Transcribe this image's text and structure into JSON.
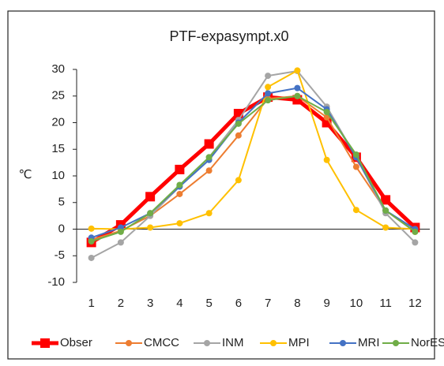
{
  "chart_data": {
    "type": "line",
    "title": "PTF-expasympt.x0",
    "y_label": "℃",
    "categories": [
      "1",
      "2",
      "3",
      "4",
      "5",
      "6",
      "7",
      "8",
      "9",
      "10",
      "11",
      "12"
    ],
    "ylim": [
      -10,
      30
    ],
    "yticks": [
      -10,
      -5,
      0,
      5,
      10,
      15,
      20,
      25,
      30
    ],
    "series": [
      {
        "name": "Obser",
        "color": "#ff0000",
        "values": [
          -2.5,
          0.8,
          6.1,
          11.2,
          16,
          21.7,
          24.8,
          24.3,
          20,
          13.5,
          5.5,
          0.3
        ]
      },
      {
        "name": "CMCC",
        "color": "#ed7d31",
        "values": [
          -2,
          -0.3,
          2.5,
          6.6,
          11,
          17.6,
          24.5,
          25,
          21,
          11.7,
          3.5,
          -0.5
        ]
      },
      {
        "name": "INM",
        "color": "#a5a5a5",
        "values": [
          -5.4,
          -2.5,
          2.5,
          8,
          13.5,
          20.5,
          28.8,
          29.7,
          23,
          13.5,
          3,
          -2.5
        ]
      },
      {
        "name": "MPI",
        "color": "#ffc000",
        "values": [
          0.1,
          0,
          0.3,
          1.1,
          3,
          9.2,
          26.7,
          29.8,
          13,
          3.6,
          0.3,
          0
        ]
      },
      {
        "name": "MRI",
        "color": "#4472c4",
        "values": [
          -1.6,
          0.3,
          3,
          8,
          13,
          20,
          25.5,
          26.5,
          22.5,
          13.5,
          3.5,
          0
        ]
      },
      {
        "name": "NorESM",
        "color": "#70ad47",
        "values": [
          -2.3,
          -0.5,
          3,
          8.3,
          13.5,
          19.8,
          24.2,
          25,
          22,
          14,
          3.5,
          -0.5
        ]
      }
    ]
  }
}
